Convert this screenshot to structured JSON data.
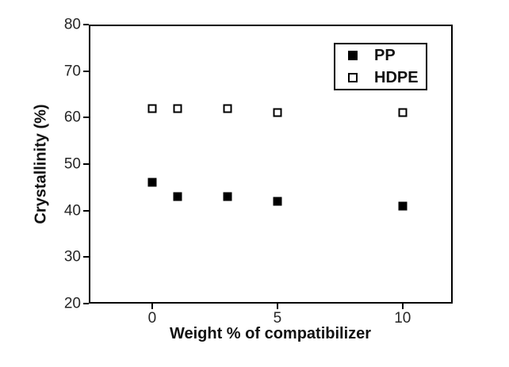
{
  "chart_data": {
    "type": "scatter",
    "title": "",
    "xlabel": "Weight % of compatibilizer",
    "ylabel": "Crystallinity (%)",
    "x": [
      0,
      1,
      3,
      5,
      10
    ],
    "series": [
      {
        "name": "PP",
        "marker": "filled-square",
        "values": [
          46,
          43,
          43,
          42,
          41
        ]
      },
      {
        "name": "HDPE",
        "marker": "open-square",
        "values": [
          62,
          62,
          62,
          61,
          61
        ]
      }
    ],
    "xlim": [
      -2.53,
      12.0
    ],
    "ylim": [
      20,
      80
    ],
    "x_ticks": [
      0,
      5,
      10
    ],
    "y_ticks": [
      20,
      30,
      40,
      50,
      60,
      70,
      80
    ],
    "grid": false,
    "legend_position": "upper-right-inside",
    "colors": {
      "marker": "#000000",
      "axis": "#000000",
      "tick_label": "#262626",
      "background": "#ffffff"
    }
  }
}
